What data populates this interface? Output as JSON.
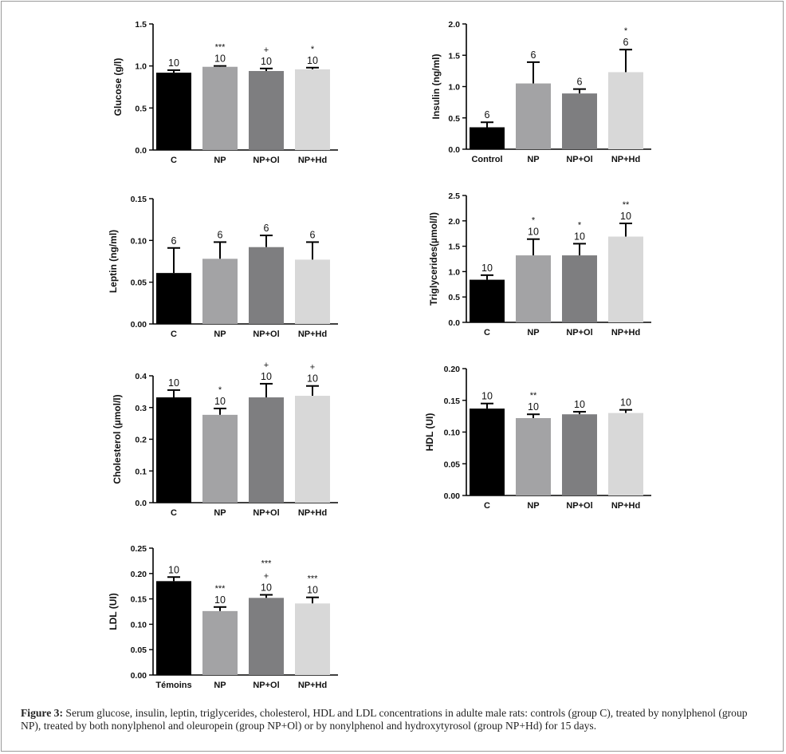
{
  "colors": {
    "C": "#000000",
    "NP": "#a3a3a5",
    "NP+Ol": "#7e7e80",
    "NP+Hd": "#d8d8d8"
  },
  "caption": {
    "label": "Figure 3:",
    "text": " Serum glucose, insulin, leptin, triglycerides, cholesterol, HDL and LDL concentrations in adulte male rats: controls (group C), treated by nonylphenol (group NP), treated by both nonylphenol and oleuropein (group NP+Ol) or by nonylphenol and hydroxytyrosol (group NP+Hd) for 15 days."
  },
  "chart_data": [
    {
      "id": "glucose",
      "type": "bar",
      "ylabel": "Glucose (g/l)",
      "ylim": [
        0,
        1.5
      ],
      "ticks": [
        "0.0",
        "0.5",
        "1.0",
        "1.5"
      ],
      "categories": [
        "C",
        "NP",
        "NP+Ol",
        "NP+Hd"
      ],
      "values": [
        0.92,
        0.99,
        0.94,
        0.96
      ],
      "errors": [
        0.03,
        0.01,
        0.03,
        0.02
      ],
      "n": [
        "10",
        "10",
        "10",
        "10"
      ],
      "sig": [
        "",
        "***",
        "+",
        "*"
      ]
    },
    {
      "id": "insulin",
      "type": "bar",
      "ylabel": "Insulin (ng/ml)",
      "ylim": [
        0,
        2.0
      ],
      "ticks": [
        "0.0",
        "0.5",
        "1.0",
        "1.5",
        "2.0"
      ],
      "categories": [
        "Control",
        "NP",
        "NP+Ol",
        "NP+Hd"
      ],
      "values": [
        0.35,
        1.05,
        0.89,
        1.23
      ],
      "errors": [
        0.08,
        0.34,
        0.07,
        0.36
      ],
      "n": [
        "6",
        "6",
        "6",
        "6"
      ],
      "sig": [
        "",
        "",
        "",
        "*"
      ]
    },
    {
      "id": "leptin",
      "type": "bar",
      "ylabel": "Leptin (ng/ml)",
      "ylim": [
        0,
        0.15
      ],
      "ticks": [
        "0.00",
        "0.05",
        "0.10",
        "0.15"
      ],
      "categories": [
        "C",
        "NP",
        "NP+Ol",
        "NP+Hd"
      ],
      "values": [
        0.061,
        0.078,
        0.092,
        0.077
      ],
      "errors": [
        0.03,
        0.02,
        0.014,
        0.021
      ],
      "n": [
        "6",
        "6",
        "6",
        "6"
      ],
      "sig": [
        "",
        "",
        "",
        ""
      ]
    },
    {
      "id": "triglycerides",
      "type": "bar",
      "ylabel": "Triglycerides(µmol/l)",
      "ylim": [
        0,
        2.5
      ],
      "ticks": [
        "0.0",
        "0.5",
        "1.0",
        "1.5",
        "2.0",
        "2.5"
      ],
      "categories": [
        "C",
        "NP",
        "NP+Ol",
        "NP+Hd"
      ],
      "values": [
        0.84,
        1.32,
        1.32,
        1.69
      ],
      "errors": [
        0.09,
        0.32,
        0.23,
        0.26
      ],
      "n": [
        "10",
        "10",
        "10",
        "10"
      ],
      "sig": [
        "",
        "*",
        "*",
        "**"
      ]
    },
    {
      "id": "cholesterol",
      "type": "bar",
      "ylabel": "Cholesterol (µmol/l)",
      "ylim": [
        0,
        0.4
      ],
      "ticks": [
        "0.0",
        "0.1",
        "0.2",
        "0.3",
        "0.4"
      ],
      "categories": [
        "C",
        "NP",
        "NP+Ol",
        "NP+Hd"
      ],
      "values": [
        0.332,
        0.277,
        0.332,
        0.337
      ],
      "errors": [
        0.023,
        0.02,
        0.043,
        0.031
      ],
      "n": [
        "10",
        "10",
        "10",
        "10"
      ],
      "sig": [
        "",
        "*",
        "+",
        "+"
      ]
    },
    {
      "id": "hdl",
      "type": "bar",
      "ylabel": "HDL (UI)",
      "ylim": [
        0,
        0.2
      ],
      "ticks": [
        "0.00",
        "0.05",
        "0.10",
        "0.15",
        "0.20"
      ],
      "categories": [
        "C",
        "NP",
        "NP+Ol",
        "NP+Hd"
      ],
      "values": [
        0.137,
        0.122,
        0.128,
        0.13
      ],
      "errors": [
        0.008,
        0.006,
        0.004,
        0.005
      ],
      "n": [
        "10",
        "10",
        "10",
        "10"
      ],
      "sig": [
        "",
        "**",
        "",
        ""
      ]
    },
    {
      "id": "ldl",
      "type": "bar",
      "ylabel": "LDL (UI)",
      "ylim": [
        0,
        0.25
      ],
      "ticks": [
        "0.00",
        "0.05",
        "0.10",
        "0.15",
        "0.20",
        "0.25"
      ],
      "categories": [
        "Témoins",
        "NP",
        "NP+Ol",
        "NP+Hd"
      ],
      "values": [
        0.185,
        0.126,
        0.152,
        0.141
      ],
      "errors": [
        0.008,
        0.008,
        0.006,
        0.012
      ],
      "n": [
        "10",
        "10",
        "10",
        "10"
      ],
      "sig": [
        "",
        "***",
        "***\n+",
        "***"
      ]
    }
  ]
}
